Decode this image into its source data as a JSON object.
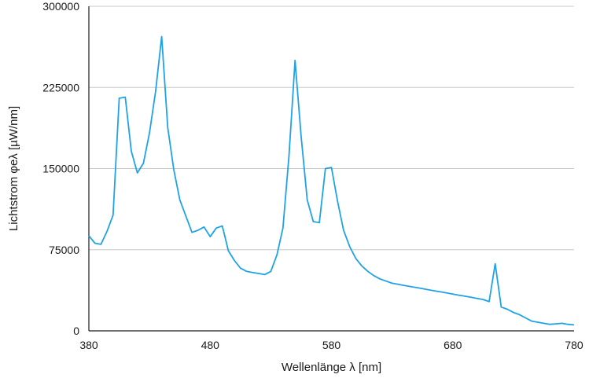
{
  "chart_data": {
    "type": "line",
    "title": "",
    "xlabel": "Wellenlänge λ [nm]",
    "ylabel": "Lichtstrom φeλ [µW/nm]",
    "xlim": [
      380,
      780
    ],
    "ylim": [
      0,
      300000
    ],
    "x_ticks": [
      380,
      480,
      580,
      680,
      780
    ],
    "y_ticks": [
      0,
      75000,
      150000,
      225000,
      300000
    ],
    "y_tick_labels": [
      "0",
      "75000",
      "150000",
      "225000",
      "300000"
    ],
    "x_tick_labels": [
      "380",
      "480",
      "580",
      "680",
      "780"
    ],
    "grid": "horizontal",
    "line_color": "#1fa3e6",
    "grid_color": "#c8c8c8",
    "axis_color": "#1a1a1a",
    "series": [
      {
        "x": [
          380,
          385,
          390,
          395,
          400,
          405,
          410,
          415,
          420,
          425,
          430,
          435,
          440,
          445,
          450,
          455,
          460,
          465,
          470,
          475,
          480,
          485,
          490,
          495,
          500,
          505,
          510,
          515,
          520,
          525,
          530,
          535,
          540,
          545,
          550,
          555,
          560,
          565,
          570,
          575,
          580,
          585,
          590,
          595,
          600,
          605,
          610,
          615,
          620,
          625,
          630,
          635,
          640,
          645,
          650,
          655,
          660,
          665,
          670,
          675,
          680,
          685,
          690,
          695,
          700,
          705,
          710,
          715,
          720,
          725,
          730,
          735,
          740,
          745,
          750,
          755,
          760,
          765,
          770,
          775,
          780
        ],
        "values": [
          88000,
          81000,
          80000,
          92000,
          107000,
          215000,
          216000,
          166000,
          146000,
          155000,
          183000,
          221000,
          272000,
          188000,
          149000,
          121000,
          106000,
          91000,
          93000,
          96000,
          87000,
          95000,
          97000,
          74000,
          65000,
          58000,
          55000,
          54000,
          53000,
          52000,
          55000,
          70000,
          95000,
          162000,
          250000,
          180000,
          121000,
          101000,
          100000,
          150000,
          151000,
          120000,
          93000,
          78000,
          67000,
          60000,
          55000,
          51000,
          48000,
          46000,
          44000,
          43000,
          42000,
          41000,
          40000,
          39000,
          38000,
          37000,
          36000,
          35000,
          34000,
          33000,
          32000,
          31000,
          30000,
          29000,
          27000,
          62000,
          22000,
          20000,
          17000,
          15000,
          12000,
          9000,
          8000,
          7000,
          6000,
          6500,
          7000,
          6000,
          5500
        ]
      }
    ]
  }
}
